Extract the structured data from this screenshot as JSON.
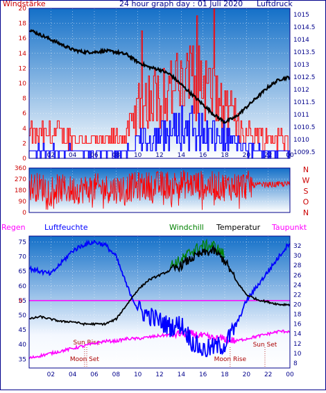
{
  "header": {
    "title": "24 hour graph day : 01 Juli 2020",
    "left_label": "Windstärke",
    "right_label": "Luftdruck"
  },
  "colors": {
    "bg_top": "#1470c8",
    "bg_bottom": "#ffffff",
    "wind_gust": "#ff0000",
    "wind_avg": "#0000ff",
    "pressure": "#000000",
    "direction": "#ff0000",
    "humidity": "#0000ff",
    "temperature": "#000000",
    "windchill": "#008000",
    "dewpoint": "#ff00ff",
    "rain": "#ff00ff",
    "label_dark": "#00008b",
    "label_red": "#cc0000"
  },
  "chart_data": [
    {
      "type": "bar",
      "name_left": "Windstärke",
      "name_right": "Luftdruck",
      "x_ticks": [
        "02",
        "04",
        "06",
        "08",
        "10",
        "12",
        "14",
        "16",
        "18",
        "20",
        "22",
        "00"
      ],
      "xlim_hours": [
        0,
        24
      ],
      "y_left_ticks": [
        0,
        2,
        4,
        6,
        8,
        10,
        12,
        14,
        16,
        18,
        20
      ],
      "ylim_left": [
        0,
        20
      ],
      "y_right_ticks": [
        "1009.5",
        "1010",
        "1010.5",
        "1011",
        "1011.5",
        "1012",
        "1012.5",
        "1013",
        "1013.5",
        "1014",
        "1014.5",
        "1015"
      ],
      "ylim_right": [
        1009.25,
        1015.25
      ],
      "gust_profile": [
        [
          0,
          3
        ],
        [
          1,
          3
        ],
        [
          2,
          3
        ],
        [
          3,
          3
        ],
        [
          4,
          2.5
        ],
        [
          5,
          2.5
        ],
        [
          6,
          2
        ],
        [
          7,
          2
        ],
        [
          8,
          2.5
        ],
        [
          9,
          3
        ],
        [
          10,
          6
        ],
        [
          11,
          7.5
        ],
        [
          12,
          8
        ],
        [
          13,
          9
        ],
        [
          14,
          9
        ],
        [
          15,
          10
        ],
        [
          16,
          9
        ],
        [
          17,
          8
        ],
        [
          18,
          6
        ],
        [
          19,
          5
        ],
        [
          20,
          3
        ],
        [
          21,
          3
        ],
        [
          22,
          2.5
        ],
        [
          23,
          2.5
        ],
        [
          24,
          2
        ]
      ],
      "avg_profile": [
        [
          0,
          1
        ],
        [
          1,
          1
        ],
        [
          2,
          1
        ],
        [
          3,
          1
        ],
        [
          4,
          0.8
        ],
        [
          5,
          0.8
        ],
        [
          6,
          0.6
        ],
        [
          7,
          0.6
        ],
        [
          8,
          0.8
        ],
        [
          9,
          1
        ],
        [
          10,
          2
        ],
        [
          11,
          2.5
        ],
        [
          12,
          3
        ],
        [
          13,
          3.5
        ],
        [
          14,
          4
        ],
        [
          15,
          4
        ],
        [
          16,
          3.5
        ],
        [
          17,
          3
        ],
        [
          18,
          2.5
        ],
        [
          19,
          2
        ],
        [
          20,
          1.2
        ],
        [
          21,
          1
        ],
        [
          22,
          0.8
        ],
        [
          23,
          0.8
        ],
        [
          24,
          0.6
        ]
      ],
      "pressure": [
        [
          0,
          1014.4
        ],
        [
          1,
          1014.2
        ],
        [
          2,
          1014.0
        ],
        [
          3,
          1013.8
        ],
        [
          4,
          1013.6
        ],
        [
          5,
          1013.5
        ],
        [
          6,
          1013.5
        ],
        [
          7,
          1013.55
        ],
        [
          8,
          1013.5
        ],
        [
          9,
          1013.4
        ],
        [
          10,
          1013.1
        ],
        [
          11,
          1012.9
        ],
        [
          12,
          1012.8
        ],
        [
          13,
          1012.6
        ],
        [
          14,
          1012.2
        ],
        [
          15,
          1011.8
        ],
        [
          16,
          1011.4
        ],
        [
          17,
          1011.0
        ],
        [
          18,
          1010.7
        ],
        [
          19,
          1010.9
        ],
        [
          20,
          1011.3
        ],
        [
          21,
          1011.7
        ],
        [
          22,
          1012.1
        ],
        [
          23,
          1012.4
        ],
        [
          24,
          1012.5
        ]
      ]
    },
    {
      "type": "line",
      "y_left_ticks": [
        0,
        90,
        180,
        270,
        360
      ],
      "ylim": [
        0,
        360
      ],
      "compass_labels": [
        "N",
        "W",
        "S",
        "O",
        "N"
      ],
      "direction_profile": [
        [
          0,
          210
        ],
        [
          2,
          200
        ],
        [
          4,
          180
        ],
        [
          6,
          200
        ],
        [
          8,
          190
        ],
        [
          10,
          210
        ],
        [
          12,
          220
        ],
        [
          14,
          230
        ],
        [
          16,
          220
        ],
        [
          18,
          210
        ],
        [
          20,
          220
        ],
        [
          22,
          225
        ],
        [
          24,
          230
        ]
      ]
    },
    {
      "type": "line",
      "legend": [
        "Regen",
        "Luftfeuchte",
        "Windchill",
        "Temperatur",
        "Taupunkt"
      ],
      "x_ticks": [
        "02",
        "04",
        "06",
        "08",
        "10",
        "12",
        "14",
        "16",
        "18",
        "20",
        "22",
        "00"
      ],
      "y_left_ticks": [
        35,
        40,
        45,
        50,
        55,
        60,
        65,
        70,
        75
      ],
      "ylim_left": [
        32,
        77
      ],
      "y_right_ticks": [
        8,
        10,
        12,
        14,
        16,
        18,
        20,
        22,
        24,
        26,
        28,
        30,
        32
      ],
      "ylim_right": [
        7,
        34
      ],
      "rain_axis_label": "0",
      "rain_value": 0,
      "humidity": [
        [
          0,
          66
        ],
        [
          1,
          65
        ],
        [
          2,
          64
        ],
        [
          3,
          68
        ],
        [
          4,
          72
        ],
        [
          5,
          74
        ],
        [
          6,
          75
        ],
        [
          7,
          74
        ],
        [
          8,
          70
        ],
        [
          9,
          60
        ],
        [
          10,
          52
        ],
        [
          11,
          50
        ],
        [
          12,
          48
        ],
        [
          13,
          46
        ],
        [
          14,
          47
        ],
        [
          15,
          41
        ],
        [
          16,
          38
        ],
        [
          17,
          39
        ],
        [
          18,
          40
        ],
        [
          19,
          46
        ],
        [
          20,
          55
        ],
        [
          21,
          60
        ],
        [
          22,
          65
        ],
        [
          23,
          70
        ],
        [
          24,
          75
        ]
      ],
      "temperature": [
        [
          0,
          17
        ],
        [
          1,
          17.5
        ],
        [
          2,
          17
        ],
        [
          3,
          16.5
        ],
        [
          4,
          16.5
        ],
        [
          5,
          16
        ],
        [
          6,
          16
        ],
        [
          7,
          16
        ],
        [
          8,
          17
        ],
        [
          9,
          20
        ],
        [
          10,
          23
        ],
        [
          11,
          25
        ],
        [
          12,
          26
        ],
        [
          13,
          27
        ],
        [
          14,
          28
        ],
        [
          15,
          29.5
        ],
        [
          16,
          30.5
        ],
        [
          17,
          31
        ],
        [
          18,
          29
        ],
        [
          19,
          25
        ],
        [
          20,
          22
        ],
        [
          21,
          21
        ],
        [
          22,
          20.5
        ],
        [
          23,
          20
        ],
        [
          24,
          20
        ]
      ],
      "windchill": [
        [
          13,
          28
        ],
        [
          14,
          29
        ],
        [
          15,
          31
        ],
        [
          16,
          32
        ],
        [
          17,
          32
        ],
        [
          18,
          30
        ]
      ],
      "dewpoint": [
        [
          0,
          9
        ],
        [
          1,
          9.5
        ],
        [
          2,
          10
        ],
        [
          3,
          10.5
        ],
        [
          4,
          11
        ],
        [
          5,
          11.5
        ],
        [
          6,
          12
        ],
        [
          7,
          12.5
        ],
        [
          8,
          12.5
        ],
        [
          9,
          13
        ],
        [
          10,
          13
        ],
        [
          11,
          13.3
        ],
        [
          12,
          13.6
        ],
        [
          13,
          13.8
        ],
        [
          14,
          14
        ],
        [
          15,
          14
        ],
        [
          16,
          13.5
        ],
        [
          17,
          13
        ],
        [
          18,
          13
        ],
        [
          19,
          12.5
        ],
        [
          20,
          13
        ],
        [
          21,
          13.5
        ],
        [
          22,
          14
        ],
        [
          23,
          14.5
        ],
        [
          24,
          14.5
        ]
      ],
      "events": [
        {
          "label": "Moon Set",
          "hour": 5.1
        },
        {
          "label": "Sun Rise",
          "hour": 5.3
        },
        {
          "label": "Moon Rise",
          "hour": 18.5
        },
        {
          "label": "Sun Set",
          "hour": 21.7
        }
      ]
    }
  ]
}
